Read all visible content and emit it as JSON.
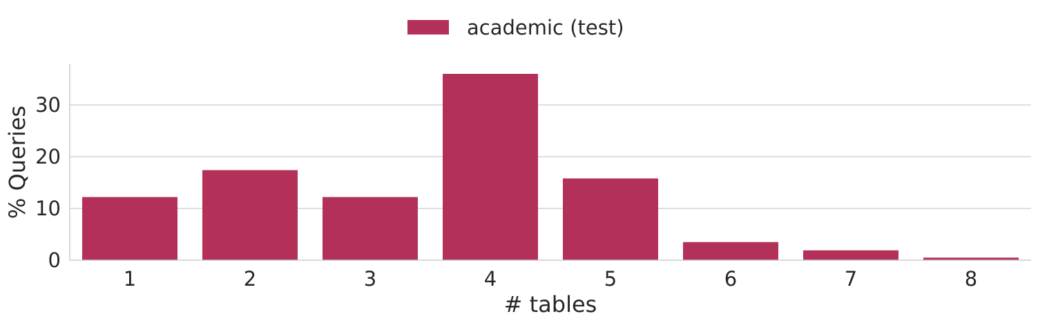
{
  "chart_data": {
    "type": "bar",
    "categories": [
      "1",
      "2",
      "3",
      "4",
      "5",
      "6",
      "7",
      "8"
    ],
    "series": [
      {
        "name": "academic (test)",
        "values": [
          12.2,
          17.4,
          12.2,
          36.0,
          15.8,
          3.5,
          1.9,
          0.5
        ],
        "color": "#b33058"
      }
    ],
    "xlabel": "# tables",
    "ylabel": "% Queries",
    "ylim": [
      0,
      38
    ],
    "yticks": [
      0,
      10,
      20,
      30
    ],
    "grid": "horizontal",
    "legend_position": "top-center"
  }
}
